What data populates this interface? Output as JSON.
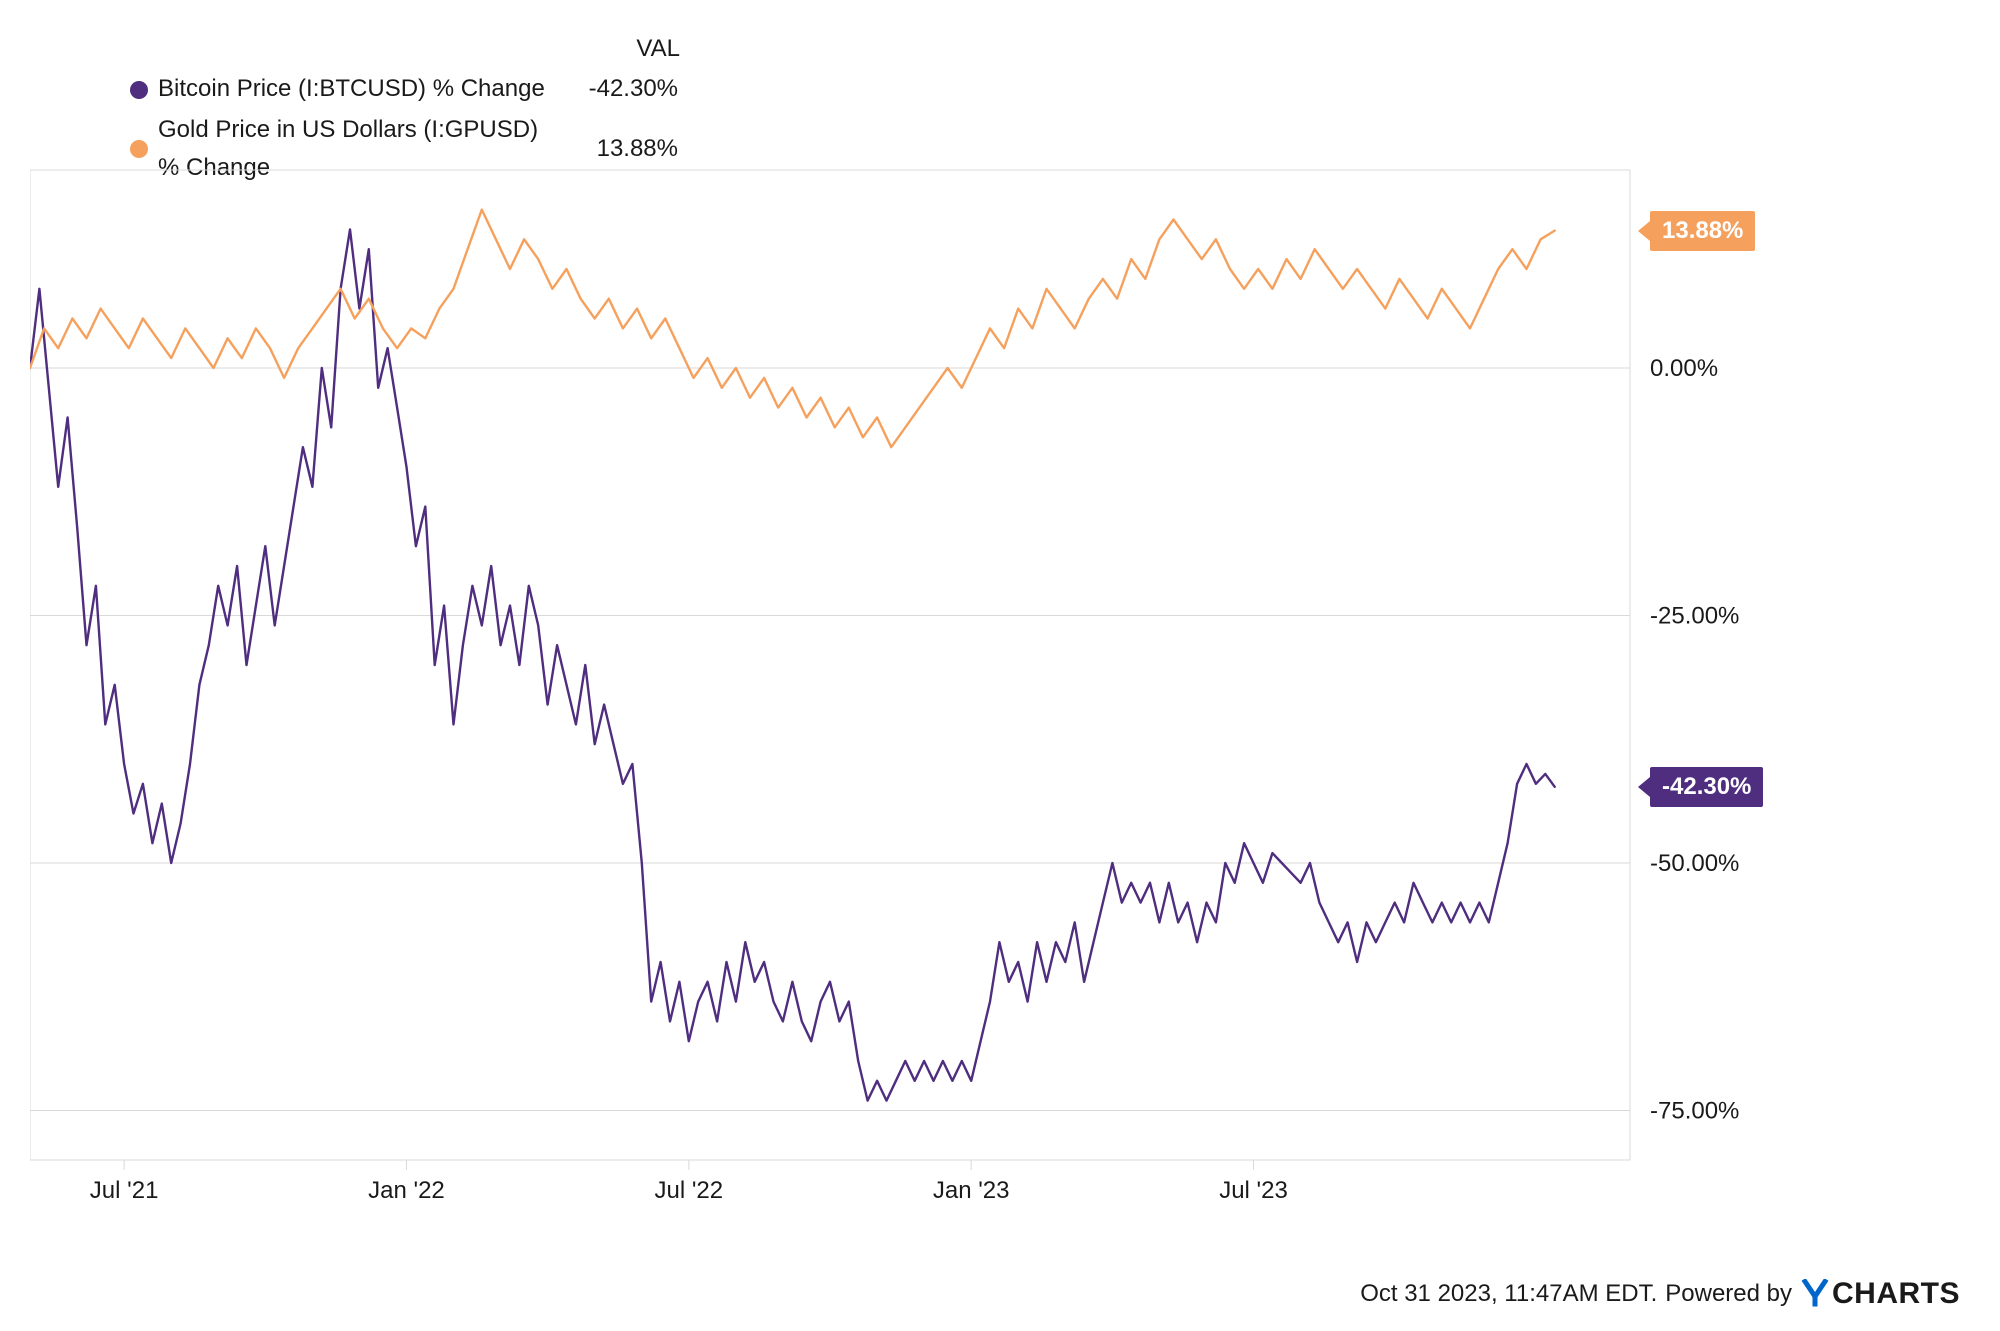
{
  "chart": {
    "type": "line",
    "background_color": "#ffffff",
    "border_color": "#d9d9d9",
    "grid_color": "#d9d9d9",
    "text_color": "#1a1a1a",
    "font_family": "Arial, sans-serif",
    "xlim": [
      0,
      34
    ],
    "ylim": [
      -80,
      20
    ],
    "line_width": 2.4,
    "title_fontsize": 24,
    "axis_fontsize": 24,
    "legend": {
      "header_val": "VAL",
      "items": [
        {
          "label": "Bitcoin Price (I:BTCUSD) % Change",
          "val": "-42.30%",
          "color": "#4f2d7f"
        },
        {
          "label": "Gold Price in US Dollars (I:GPUSD) % Change",
          "val": "13.88%",
          "color": "#f5a15d"
        }
      ]
    },
    "y_ticks": [
      {
        "v": 0,
        "label": "0.00%"
      },
      {
        "v": -25,
        "label": "-25.00%"
      },
      {
        "v": -50,
        "label": "-50.00%"
      },
      {
        "v": -75,
        "label": "-75.00%"
      }
    ],
    "x_ticks": [
      {
        "v": 2,
        "label": "Jul '21"
      },
      {
        "v": 8,
        "label": "Jan '22"
      },
      {
        "v": 14,
        "label": "Jul '22"
      },
      {
        "v": 20,
        "label": "Jan '23"
      },
      {
        "v": 26,
        "label": "Jul '23"
      }
    ],
    "series": [
      {
        "name": "bitcoin",
        "color": "#4f2d7f",
        "end_label": "-42.30%",
        "data": [
          [
            0,
            0
          ],
          [
            0.2,
            8
          ],
          [
            0.4,
            -2
          ],
          [
            0.6,
            -12
          ],
          [
            0.8,
            -5
          ],
          [
            1,
            -16
          ],
          [
            1.2,
            -28
          ],
          [
            1.4,
            -22
          ],
          [
            1.6,
            -36
          ],
          [
            1.8,
            -32
          ],
          [
            2,
            -40
          ],
          [
            2.2,
            -45
          ],
          [
            2.4,
            -42
          ],
          [
            2.6,
            -48
          ],
          [
            2.8,
            -44
          ],
          [
            3,
            -50
          ],
          [
            3.2,
            -46
          ],
          [
            3.4,
            -40
          ],
          [
            3.6,
            -32
          ],
          [
            3.8,
            -28
          ],
          [
            4,
            -22
          ],
          [
            4.2,
            -26
          ],
          [
            4.4,
            -20
          ],
          [
            4.6,
            -30
          ],
          [
            4.8,
            -24
          ],
          [
            5,
            -18
          ],
          [
            5.2,
            -26
          ],
          [
            5.4,
            -20
          ],
          [
            5.6,
            -14
          ],
          [
            5.8,
            -8
          ],
          [
            6,
            -12
          ],
          [
            6.2,
            0
          ],
          [
            6.4,
            -6
          ],
          [
            6.6,
            8
          ],
          [
            6.8,
            14
          ],
          [
            7,
            6
          ],
          [
            7.2,
            12
          ],
          [
            7.4,
            -2
          ],
          [
            7.6,
            2
          ],
          [
            7.8,
            -4
          ],
          [
            8,
            -10
          ],
          [
            8.2,
            -18
          ],
          [
            8.4,
            -14
          ],
          [
            8.6,
            -30
          ],
          [
            8.8,
            -24
          ],
          [
            9,
            -36
          ],
          [
            9.2,
            -28
          ],
          [
            9.4,
            -22
          ],
          [
            9.6,
            -26
          ],
          [
            9.8,
            -20
          ],
          [
            10,
            -28
          ],
          [
            10.2,
            -24
          ],
          [
            10.4,
            -30
          ],
          [
            10.6,
            -22
          ],
          [
            10.8,
            -26
          ],
          [
            11,
            -34
          ],
          [
            11.2,
            -28
          ],
          [
            11.4,
            -32
          ],
          [
            11.6,
            -36
          ],
          [
            11.8,
            -30
          ],
          [
            12,
            -38
          ],
          [
            12.2,
            -34
          ],
          [
            12.4,
            -38
          ],
          [
            12.6,
            -42
          ],
          [
            12.8,
            -40
          ],
          [
            13,
            -50
          ],
          [
            13.2,
            -64
          ],
          [
            13.4,
            -60
          ],
          [
            13.6,
            -66
          ],
          [
            13.8,
            -62
          ],
          [
            14,
            -68
          ],
          [
            14.2,
            -64
          ],
          [
            14.4,
            -62
          ],
          [
            14.6,
            -66
          ],
          [
            14.8,
            -60
          ],
          [
            15,
            -64
          ],
          [
            15.2,
            -58
          ],
          [
            15.4,
            -62
          ],
          [
            15.6,
            -60
          ],
          [
            15.8,
            -64
          ],
          [
            16,
            -66
          ],
          [
            16.2,
            -62
          ],
          [
            16.4,
            -66
          ],
          [
            16.6,
            -68
          ],
          [
            16.8,
            -64
          ],
          [
            17,
            -62
          ],
          [
            17.2,
            -66
          ],
          [
            17.4,
            -64
          ],
          [
            17.6,
            -70
          ],
          [
            17.8,
            -74
          ],
          [
            18,
            -72
          ],
          [
            18.2,
            -74
          ],
          [
            18.4,
            -72
          ],
          [
            18.6,
            -70
          ],
          [
            18.8,
            -72
          ],
          [
            19,
            -70
          ],
          [
            19.2,
            -72
          ],
          [
            19.4,
            -70
          ],
          [
            19.6,
            -72
          ],
          [
            19.8,
            -70
          ],
          [
            20,
            -72
          ],
          [
            20.2,
            -68
          ],
          [
            20.4,
            -64
          ],
          [
            20.6,
            -58
          ],
          [
            20.8,
            -62
          ],
          [
            21,
            -60
          ],
          [
            21.2,
            -64
          ],
          [
            21.4,
            -58
          ],
          [
            21.6,
            -62
          ],
          [
            21.8,
            -58
          ],
          [
            22,
            -60
          ],
          [
            22.2,
            -56
          ],
          [
            22.4,
            -62
          ],
          [
            22.6,
            -58
          ],
          [
            22.8,
            -54
          ],
          [
            23,
            -50
          ],
          [
            23.2,
            -54
          ],
          [
            23.4,
            -52
          ],
          [
            23.6,
            -54
          ],
          [
            23.8,
            -52
          ],
          [
            24,
            -56
          ],
          [
            24.2,
            -52
          ],
          [
            24.4,
            -56
          ],
          [
            24.6,
            -54
          ],
          [
            24.8,
            -58
          ],
          [
            25,
            -54
          ],
          [
            25.2,
            -56
          ],
          [
            25.4,
            -50
          ],
          [
            25.6,
            -52
          ],
          [
            25.8,
            -48
          ],
          [
            26,
            -50
          ],
          [
            26.2,
            -52
          ],
          [
            26.4,
            -49
          ],
          [
            26.6,
            -50
          ],
          [
            26.8,
            -51
          ],
          [
            27,
            -52
          ],
          [
            27.2,
            -50
          ],
          [
            27.4,
            -54
          ],
          [
            27.6,
            -56
          ],
          [
            27.8,
            -58
          ],
          [
            28,
            -56
          ],
          [
            28.2,
            -60
          ],
          [
            28.4,
            -56
          ],
          [
            28.6,
            -58
          ],
          [
            28.8,
            -56
          ],
          [
            29,
            -54
          ],
          [
            29.2,
            -56
          ],
          [
            29.4,
            -52
          ],
          [
            29.6,
            -54
          ],
          [
            29.8,
            -56
          ],
          [
            30,
            -54
          ],
          [
            30.2,
            -56
          ],
          [
            30.4,
            -54
          ],
          [
            30.6,
            -56
          ],
          [
            30.8,
            -54
          ],
          [
            31,
            -56
          ],
          [
            31.2,
            -52
          ],
          [
            31.4,
            -48
          ],
          [
            31.6,
            -42
          ],
          [
            31.8,
            -40
          ],
          [
            32,
            -42
          ],
          [
            32.2,
            -41
          ],
          [
            32.4,
            -42.3
          ]
        ]
      },
      {
        "name": "gold",
        "color": "#f5a15d",
        "end_label": "13.88%",
        "data": [
          [
            0,
            0
          ],
          [
            0.3,
            4
          ],
          [
            0.6,
            2
          ],
          [
            0.9,
            5
          ],
          [
            1.2,
            3
          ],
          [
            1.5,
            6
          ],
          [
            1.8,
            4
          ],
          [
            2.1,
            2
          ],
          [
            2.4,
            5
          ],
          [
            2.7,
            3
          ],
          [
            3,
            1
          ],
          [
            3.3,
            4
          ],
          [
            3.6,
            2
          ],
          [
            3.9,
            0
          ],
          [
            4.2,
            3
          ],
          [
            4.5,
            1
          ],
          [
            4.8,
            4
          ],
          [
            5.1,
            2
          ],
          [
            5.4,
            -1
          ],
          [
            5.7,
            2
          ],
          [
            6,
            4
          ],
          [
            6.3,
            6
          ],
          [
            6.6,
            8
          ],
          [
            6.9,
            5
          ],
          [
            7.2,
            7
          ],
          [
            7.5,
            4
          ],
          [
            7.8,
            2
          ],
          [
            8.1,
            4
          ],
          [
            8.4,
            3
          ],
          [
            8.7,
            6
          ],
          [
            9,
            8
          ],
          [
            9.3,
            12
          ],
          [
            9.6,
            16
          ],
          [
            9.9,
            13
          ],
          [
            10.2,
            10
          ],
          [
            10.5,
            13
          ],
          [
            10.8,
            11
          ],
          [
            11.1,
            8
          ],
          [
            11.4,
            10
          ],
          [
            11.7,
            7
          ],
          [
            12,
            5
          ],
          [
            12.3,
            7
          ],
          [
            12.6,
            4
          ],
          [
            12.9,
            6
          ],
          [
            13.2,
            3
          ],
          [
            13.5,
            5
          ],
          [
            13.8,
            2
          ],
          [
            14.1,
            -1
          ],
          [
            14.4,
            1
          ],
          [
            14.7,
            -2
          ],
          [
            15,
            0
          ],
          [
            15.3,
            -3
          ],
          [
            15.6,
            -1
          ],
          [
            15.9,
            -4
          ],
          [
            16.2,
            -2
          ],
          [
            16.5,
            -5
          ],
          [
            16.8,
            -3
          ],
          [
            17.1,
            -6
          ],
          [
            17.4,
            -4
          ],
          [
            17.7,
            -7
          ],
          [
            18,
            -5
          ],
          [
            18.3,
            -8
          ],
          [
            18.6,
            -6
          ],
          [
            18.9,
            -4
          ],
          [
            19.2,
            -2
          ],
          [
            19.5,
            0
          ],
          [
            19.8,
            -2
          ],
          [
            20.1,
            1
          ],
          [
            20.4,
            4
          ],
          [
            20.7,
            2
          ],
          [
            21,
            6
          ],
          [
            21.3,
            4
          ],
          [
            21.6,
            8
          ],
          [
            21.9,
            6
          ],
          [
            22.2,
            4
          ],
          [
            22.5,
            7
          ],
          [
            22.8,
            9
          ],
          [
            23.1,
            7
          ],
          [
            23.4,
            11
          ],
          [
            23.7,
            9
          ],
          [
            24,
            13
          ],
          [
            24.3,
            15
          ],
          [
            24.6,
            13
          ],
          [
            24.9,
            11
          ],
          [
            25.2,
            13
          ],
          [
            25.5,
            10
          ],
          [
            25.8,
            8
          ],
          [
            26.1,
            10
          ],
          [
            26.4,
            8
          ],
          [
            26.7,
            11
          ],
          [
            27,
            9
          ],
          [
            27.3,
            12
          ],
          [
            27.6,
            10
          ],
          [
            27.9,
            8
          ],
          [
            28.2,
            10
          ],
          [
            28.5,
            8
          ],
          [
            28.8,
            6
          ],
          [
            29.1,
            9
          ],
          [
            29.4,
            7
          ],
          [
            29.7,
            5
          ],
          [
            30,
            8
          ],
          [
            30.3,
            6
          ],
          [
            30.6,
            4
          ],
          [
            30.9,
            7
          ],
          [
            31.2,
            10
          ],
          [
            31.5,
            12
          ],
          [
            31.8,
            10
          ],
          [
            32.1,
            13
          ],
          [
            32.4,
            13.88
          ]
        ]
      }
    ]
  },
  "footer": {
    "timestamp": "Oct 31 2023, 11:47AM EDT.",
    "powered_by": "Powered by",
    "logo_text": "CHARTS",
    "logo_color": "#0066cc"
  }
}
